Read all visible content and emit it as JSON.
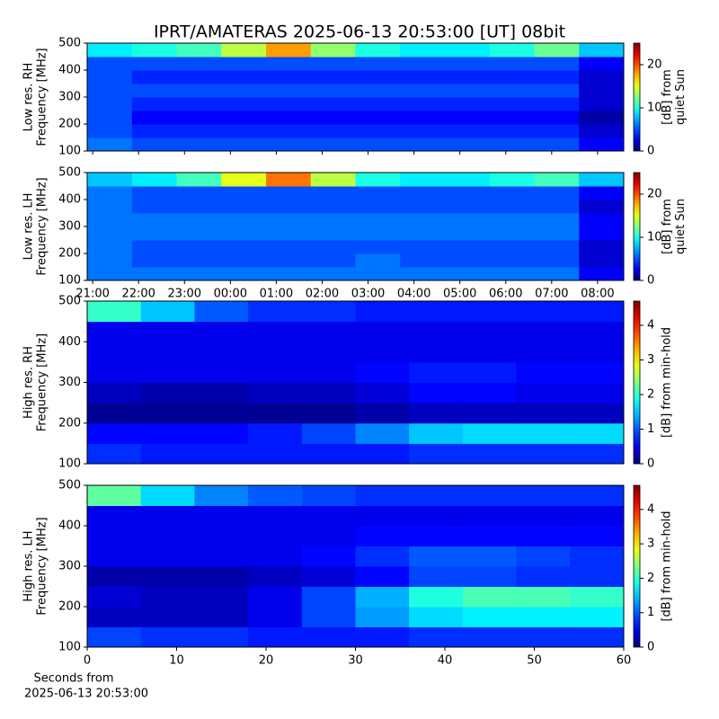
{
  "title": "IPRT/AMATERAS 2025-06-13 20:53:00 [UT]   08bit",
  "xlabel": [
    "Seconds from",
    "2025-06-13 20:53:00"
  ],
  "chart_data": [
    {
      "type": "heatmap",
      "ylabel": [
        "Low res. RH",
        "Frequency [MHz]"
      ],
      "xlim": [
        20.88,
        32.57
      ],
      "xticks": [
        21,
        22,
        23,
        24,
        25,
        26,
        27,
        28,
        29,
        30,
        31,
        32
      ],
      "ylim": [
        100,
        500
      ],
      "yticks": [
        100,
        200,
        300,
        400,
        500
      ],
      "clim": [
        0,
        25
      ],
      "cticks": [
        0,
        10,
        20
      ],
      "clabel": [
        "[dB] from",
        "quiet Sun"
      ],
      "z": [
        [
          6,
          5,
          5,
          5,
          5,
          5,
          5,
          5,
          5,
          5,
          5,
          3
        ],
        [
          5,
          4,
          4,
          4,
          4,
          4,
          4,
          4,
          4,
          4,
          4,
          2
        ],
        [
          5,
          3,
          3,
          3,
          3,
          3,
          3,
          3,
          3,
          3,
          3,
          1
        ],
        [
          5,
          4,
          4,
          4,
          4,
          4,
          4,
          4,
          4,
          4,
          4,
          2
        ],
        [
          5,
          5,
          5,
          5,
          5,
          5,
          5,
          5,
          5,
          5,
          5,
          2
        ],
        [
          5,
          4,
          4,
          4,
          4,
          4,
          4,
          4,
          4,
          4,
          4,
          2
        ],
        [
          5,
          5,
          5,
          5,
          5,
          5,
          5,
          5,
          5,
          5,
          5,
          3
        ],
        [
          9,
          10,
          11,
          14,
          18,
          13,
          10,
          9,
          9,
          10,
          12,
          8
        ]
      ]
    },
    {
      "type": "heatmap",
      "ylabel": [
        "Low res. LH",
        "Frequency [MHz]"
      ],
      "xlim": [
        20.88,
        32.57
      ],
      "xticks": [
        {
          "value": 21,
          "label": "21:00"
        },
        {
          "value": 22,
          "label": "22:00"
        },
        {
          "value": 23,
          "label": "23:00"
        },
        {
          "value": 24,
          "label": "00:00"
        },
        {
          "value": 25,
          "label": "01:00"
        },
        {
          "value": 26,
          "label": "02:00"
        },
        {
          "value": 27,
          "label": "03:00"
        },
        {
          "value": 28,
          "label": "04:00"
        },
        {
          "value": 29,
          "label": "05:00"
        },
        {
          "value": 30,
          "label": "06:00"
        },
        {
          "value": 31,
          "label": "07:00"
        },
        {
          "value": 32,
          "label": "08:00"
        }
      ],
      "ylim": [
        100,
        500
      ],
      "yticks": [
        100,
        200,
        300,
        400,
        500
      ],
      "clim": [
        0,
        25
      ],
      "cticks": [
        0,
        10,
        20
      ],
      "clabel": [
        "[dB] from",
        "quiet Sun"
      ],
      "z": [
        [
          6,
          6,
          6,
          6,
          6,
          6,
          6,
          6,
          6,
          6,
          6,
          3
        ],
        [
          6,
          5,
          5,
          5,
          5,
          5,
          6,
          5,
          5,
          5,
          5,
          2
        ],
        [
          6,
          5,
          5,
          5,
          5,
          5,
          5,
          5,
          5,
          5,
          5,
          2
        ],
        [
          6,
          6,
          6,
          6,
          6,
          6,
          6,
          6,
          6,
          6,
          6,
          3
        ],
        [
          6,
          6,
          6,
          6,
          6,
          6,
          6,
          6,
          6,
          6,
          6,
          3
        ],
        [
          6,
          5,
          5,
          5,
          5,
          5,
          5,
          5,
          5,
          5,
          5,
          2
        ],
        [
          6,
          5,
          5,
          5,
          5,
          5,
          5,
          5,
          5,
          5,
          5,
          3
        ],
        [
          8,
          9,
          11,
          15,
          19,
          14,
          10,
          9,
          9,
          10,
          11,
          8
        ]
      ]
    },
    {
      "type": "heatmap",
      "ylabel": [
        "High res. RH",
        "Frequency [MHz]"
      ],
      "xlim": [
        0,
        60
      ],
      "ylim": [
        100,
        500
      ],
      "yticks": [
        100,
        200,
        300,
        400,
        500
      ],
      "clim": [
        0,
        4.7
      ],
      "cticks": [
        0,
        1,
        2,
        3,
        4
      ],
      "clabel": [
        "[dB] from min-hold"
      ],
      "z": [
        [
          0.8,
          0.7,
          0.7,
          0.7,
          0.7,
          0.7,
          0.8,
          0.8,
          0.8,
          0.8
        ],
        [
          0.6,
          0.6,
          0.6,
          0.7,
          0.9,
          1.2,
          1.5,
          1.6,
          1.6,
          1.6
        ],
        [
          0.1,
          0.1,
          0.1,
          0.1,
          0.1,
          0.2,
          0.3,
          0.3,
          0.3,
          0.3
        ],
        [
          0.3,
          0.2,
          0.2,
          0.3,
          0.3,
          0.4,
          0.6,
          0.6,
          0.5,
          0.5
        ],
        [
          0.5,
          0.5,
          0.5,
          0.5,
          0.5,
          0.6,
          0.7,
          0.7,
          0.6,
          0.6
        ],
        [
          0.5,
          0.5,
          0.5,
          0.5,
          0.5,
          0.5,
          0.5,
          0.5,
          0.5,
          0.5
        ],
        [
          0.5,
          0.5,
          0.5,
          0.5,
          0.5,
          0.5,
          0.5,
          0.5,
          0.5,
          0.5
        ],
        [
          2.0,
          1.5,
          1.0,
          0.8,
          0.8,
          0.7,
          0.7,
          0.7,
          0.7,
          0.7
        ]
      ]
    },
    {
      "type": "heatmap",
      "ylabel": [
        "High res. LH",
        "Frequency [MHz]"
      ],
      "xlim": [
        0,
        60
      ],
      "xticks": [
        0,
        10,
        20,
        30,
        40,
        50,
        60
      ],
      "ylim": [
        100,
        500
      ],
      "yticks": [
        100,
        200,
        300,
        400,
        500
      ],
      "clim": [
        0,
        4.7
      ],
      "cticks": [
        0,
        1,
        2,
        3,
        4
      ],
      "clabel": [
        "[dB] from min-hold"
      ],
      "z": [
        [
          0.9,
          0.8,
          0.8,
          0.7,
          0.7,
          0.7,
          0.8,
          0.8,
          0.8,
          0.8
        ],
        [
          0.3,
          0.3,
          0.3,
          0.5,
          0.9,
          1.3,
          1.6,
          1.7,
          1.7,
          1.7
        ],
        [
          0.4,
          0.3,
          0.3,
          0.5,
          0.9,
          1.4,
          1.9,
          2.1,
          2.1,
          2.0
        ],
        [
          0.2,
          0.2,
          0.2,
          0.3,
          0.4,
          0.6,
          0.9,
          0.9,
          0.8,
          0.8
        ],
        [
          0.5,
          0.5,
          0.5,
          0.5,
          0.6,
          0.8,
          1.0,
          1.0,
          0.9,
          0.8
        ],
        [
          0.5,
          0.5,
          0.5,
          0.5,
          0.5,
          0.6,
          0.6,
          0.6,
          0.6,
          0.6
        ],
        [
          0.5,
          0.5,
          0.5,
          0.5,
          0.5,
          0.5,
          0.5,
          0.5,
          0.5,
          0.5
        ],
        [
          2.2,
          1.6,
          1.2,
          1.0,
          0.9,
          0.8,
          0.8,
          0.8,
          0.8,
          0.8
        ]
      ]
    }
  ]
}
